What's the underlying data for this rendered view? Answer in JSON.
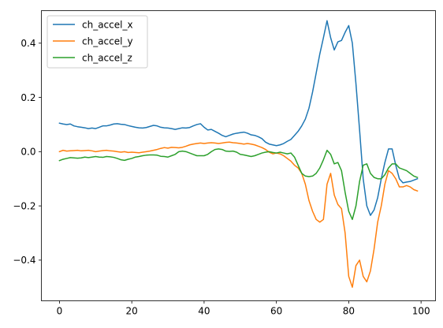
{
  "chart_data": {
    "type": "line",
    "title": "",
    "xlabel": "",
    "ylabel": "",
    "xlim": [
      -5,
      104
    ],
    "ylim": [
      -0.55,
      0.52
    ],
    "xticks": [
      0,
      20,
      40,
      60,
      80,
      100
    ],
    "yticks": [
      -0.4,
      -0.2,
      0.0,
      0.2,
      0.4
    ],
    "xtick_labels": [
      "0",
      "20",
      "40",
      "60",
      "80",
      "100"
    ],
    "ytick_labels": [
      "−0.4",
      "−0.2",
      "0.0",
      "0.2",
      "0.4"
    ],
    "grid": false,
    "legend_position": "top-left",
    "x": [
      0,
      1,
      2,
      3,
      4,
      5,
      6,
      7,
      8,
      9,
      10,
      11,
      12,
      13,
      14,
      15,
      16,
      17,
      18,
      19,
      20,
      21,
      22,
      23,
      24,
      25,
      26,
      27,
      28,
      29,
      30,
      31,
      32,
      33,
      34,
      35,
      36,
      37,
      38,
      39,
      40,
      41,
      42,
      43,
      44,
      45,
      46,
      47,
      48,
      49,
      50,
      51,
      52,
      53,
      54,
      55,
      56,
      57,
      58,
      59,
      60,
      61,
      62,
      63,
      64,
      65,
      66,
      67,
      68,
      69,
      70,
      71,
      72,
      73,
      74,
      75,
      76,
      77,
      78,
      79,
      80,
      81,
      82,
      83,
      84,
      85,
      86,
      87,
      88,
      89,
      90,
      91,
      92,
      93,
      94,
      95,
      96,
      97,
      98,
      99
    ],
    "series": [
      {
        "name": "ch_accel_x",
        "color": "#1f77b4",
        "values": [
          0.105,
          0.102,
          0.1,
          0.102,
          0.095,
          0.092,
          0.09,
          0.088,
          0.085,
          0.087,
          0.085,
          0.09,
          0.095,
          0.095,
          0.098,
          0.102,
          0.103,
          0.101,
          0.1,
          0.096,
          0.093,
          0.09,
          0.088,
          0.087,
          0.089,
          0.093,
          0.097,
          0.095,
          0.09,
          0.088,
          0.087,
          0.085,
          0.082,
          0.085,
          0.088,
          0.087,
          0.089,
          0.095,
          0.1,
          0.103,
          0.09,
          0.08,
          0.082,
          0.075,
          0.068,
          0.06,
          0.055,
          0.06,
          0.065,
          0.068,
          0.07,
          0.072,
          0.068,
          0.062,
          0.06,
          0.055,
          0.048,
          0.035,
          0.028,
          0.025,
          0.022,
          0.025,
          0.03,
          0.038,
          0.045,
          0.06,
          0.075,
          0.095,
          0.12,
          0.16,
          0.22,
          0.29,
          0.36,
          0.42,
          0.483,
          0.42,
          0.375,
          0.405,
          0.41,
          0.44,
          0.465,
          0.4,
          0.25,
          0.08,
          -0.1,
          -0.2,
          -0.235,
          -0.215,
          -0.17,
          -0.1,
          -0.04,
          0.01,
          0.01,
          -0.05,
          -0.1,
          -0.115,
          -0.112,
          -0.11,
          -0.105,
          -0.1
        ]
      },
      {
        "name": "ch_accel_y",
        "color": "#ff7f0e",
        "values": [
          0.0,
          0.005,
          0.002,
          0.003,
          0.004,
          0.005,
          0.003,
          0.004,
          0.005,
          0.003,
          0.0,
          0.002,
          0.004,
          0.005,
          0.003,
          0.002,
          0.0,
          -0.002,
          0.0,
          -0.003,
          -0.002,
          -0.003,
          -0.004,
          -0.002,
          0.0,
          0.002,
          0.005,
          0.008,
          0.012,
          0.015,
          0.013,
          0.016,
          0.015,
          0.014,
          0.016,
          0.02,
          0.025,
          0.028,
          0.03,
          0.032,
          0.03,
          0.032,
          0.033,
          0.032,
          0.03,
          0.032,
          0.034,
          0.035,
          0.033,
          0.032,
          0.03,
          0.028,
          0.03,
          0.028,
          0.025,
          0.02,
          0.015,
          0.008,
          -0.002,
          -0.008,
          -0.005,
          -0.008,
          -0.015,
          -0.025,
          -0.035,
          -0.05,
          -0.06,
          -0.08,
          -0.12,
          -0.18,
          -0.22,
          -0.25,
          -0.26,
          -0.25,
          -0.12,
          -0.08,
          -0.16,
          -0.195,
          -0.21,
          -0.3,
          -0.46,
          -0.5,
          -0.42,
          -0.4,
          -0.46,
          -0.48,
          -0.44,
          -0.36,
          -0.26,
          -0.2,
          -0.12,
          -0.07,
          -0.08,
          -0.1,
          -0.13,
          -0.13,
          -0.125,
          -0.13,
          -0.14,
          -0.145
        ]
      },
      {
        "name": "ch_accel_z",
        "color": "#2ca02c",
        "values": [
          -0.033,
          -0.028,
          -0.025,
          -0.022,
          -0.023,
          -0.024,
          -0.023,
          -0.02,
          -0.022,
          -0.02,
          -0.018,
          -0.02,
          -0.021,
          -0.018,
          -0.019,
          -0.021,
          -0.025,
          -0.03,
          -0.032,
          -0.028,
          -0.025,
          -0.02,
          -0.018,
          -0.015,
          -0.013,
          -0.012,
          -0.012,
          -0.013,
          -0.017,
          -0.018,
          -0.02,
          -0.015,
          -0.01,
          0.0,
          0.002,
          0.0,
          -0.005,
          -0.01,
          -0.015,
          -0.015,
          -0.015,
          -0.01,
          0.0,
          0.008,
          0.01,
          0.008,
          0.002,
          0.001,
          0.002,
          -0.002,
          -0.01,
          -0.012,
          -0.015,
          -0.018,
          -0.015,
          -0.01,
          -0.005,
          -0.002,
          0.0,
          -0.003,
          -0.005,
          -0.002,
          -0.005,
          -0.008,
          -0.005,
          -0.02,
          -0.05,
          -0.08,
          -0.09,
          -0.092,
          -0.09,
          -0.08,
          -0.06,
          -0.03,
          0.005,
          -0.01,
          -0.045,
          -0.04,
          -0.07,
          -0.15,
          -0.22,
          -0.25,
          -0.2,
          -0.11,
          -0.05,
          -0.045,
          -0.08,
          -0.095,
          -0.1,
          -0.1,
          -0.085,
          -0.06,
          -0.045,
          -0.045,
          -0.06,
          -0.065,
          -0.07,
          -0.08,
          -0.09,
          -0.095
        ]
      }
    ]
  }
}
